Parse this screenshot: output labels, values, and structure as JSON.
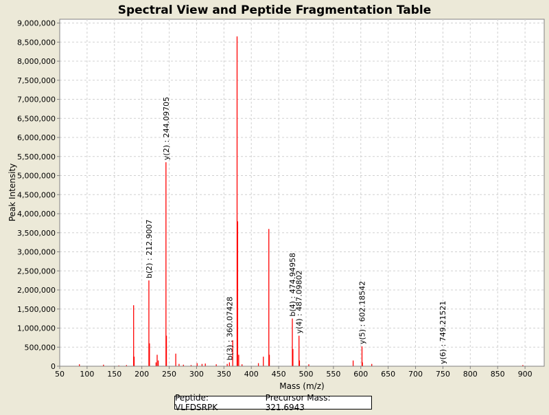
{
  "colors": {
    "background": "#ece9d8",
    "plot_background": "#ffffff",
    "peak": "#ff0000",
    "grid": "#d0d0d0",
    "axis": "#808080",
    "text": "#000000"
  },
  "chart_data": {
    "type": "bar",
    "title": "Spectral View and Peptide Fragmentation Table",
    "xlabel": "Mass (m/z)",
    "ylabel": "Peak Intensity",
    "xlim": [
      50,
      935
    ],
    "ylim": [
      0,
      9100000
    ],
    "xticks": [
      50,
      100,
      150,
      200,
      250,
      300,
      350,
      400,
      450,
      500,
      550,
      600,
      650,
      700,
      750,
      800,
      850,
      900
    ],
    "xtick_labels": [
      "50",
      "100",
      "150",
      "200",
      "250",
      "300",
      "350",
      "400",
      "450",
      "500",
      "550",
      "600",
      "650",
      "700",
      "750",
      "800",
      "850",
      "900"
    ],
    "yticks": [
      0,
      500000,
      1000000,
      1500000,
      2000000,
      2500000,
      3000000,
      3500000,
      4000000,
      4500000,
      5000000,
      5500000,
      6000000,
      6500000,
      7000000,
      7500000,
      8000000,
      8500000,
      9000000
    ],
    "ytick_labels": [
      "0",
      "500,000",
      "1,000,000",
      "1,500,000",
      "2,000,000",
      "2,500,000",
      "3,000,000",
      "3,500,000",
      "4,000,000",
      "4,500,000",
      "5,000,000",
      "5,500,000",
      "6,000,000",
      "6,500,000",
      "7,000,000",
      "7,500,000",
      "8,000,000",
      "8,500,000",
      "9,000,000"
    ],
    "grid": true,
    "peaks": [
      {
        "mz": 86,
        "intensity": 50000
      },
      {
        "mz": 130,
        "intensity": 40000
      },
      {
        "mz": 158,
        "intensity": 20000
      },
      {
        "mz": 172,
        "intensity": 30000
      },
      {
        "mz": 185,
        "intensity": 1600000
      },
      {
        "mz": 186,
        "intensity": 250000
      },
      {
        "mz": 212.9,
        "intensity": 2250000
      },
      {
        "mz": 214,
        "intensity": 600000
      },
      {
        "mz": 226,
        "intensity": 100000
      },
      {
        "mz": 228,
        "intensity": 300000
      },
      {
        "mz": 230,
        "intensity": 150000
      },
      {
        "mz": 244.1,
        "intensity": 5350000
      },
      {
        "mz": 245,
        "intensity": 800000
      },
      {
        "mz": 262,
        "intensity": 330000
      },
      {
        "mz": 268,
        "intensity": 60000
      },
      {
        "mz": 276,
        "intensity": 40000
      },
      {
        "mz": 290,
        "intensity": 30000
      },
      {
        "mz": 301,
        "intensity": 80000
      },
      {
        "mz": 310,
        "intensity": 60000
      },
      {
        "mz": 316,
        "intensity": 70000
      },
      {
        "mz": 336,
        "intensity": 50000
      },
      {
        "mz": 356,
        "intensity": 60000
      },
      {
        "mz": 360.07,
        "intensity": 100000
      },
      {
        "mz": 366,
        "intensity": 680000
      },
      {
        "mz": 374,
        "intensity": 8650000
      },
      {
        "mz": 375,
        "intensity": 3800000
      },
      {
        "mz": 377,
        "intensity": 300000
      },
      {
        "mz": 383,
        "intensity": 50000
      },
      {
        "mz": 413,
        "intensity": 80000
      },
      {
        "mz": 422,
        "intensity": 250000
      },
      {
        "mz": 432,
        "intensity": 3600000
      },
      {
        "mz": 433,
        "intensity": 300000
      },
      {
        "mz": 474.95,
        "intensity": 1250000
      },
      {
        "mz": 476,
        "intensity": 450000
      },
      {
        "mz": 487.1,
        "intensity": 800000
      },
      {
        "mz": 488,
        "intensity": 150000
      },
      {
        "mz": 505,
        "intensity": 50000
      },
      {
        "mz": 586,
        "intensity": 150000
      },
      {
        "mz": 602.19,
        "intensity": 520000
      },
      {
        "mz": 603,
        "intensity": 100000
      },
      {
        "mz": 620,
        "intensity": 60000
      },
      {
        "mz": 896,
        "intensity": 30000
      }
    ],
    "annotations": [
      {
        "mz": 212.9007,
        "intensity": 2250000,
        "label": "b(2) : 212.9007"
      },
      {
        "mz": 244.09705,
        "intensity": 5350000,
        "label": "y(2) : 244.09705"
      },
      {
        "mz": 360.07428,
        "intensity": 100000,
        "label": "b(3) : 360.07428"
      },
      {
        "mz": 474.94958,
        "intensity": 1250000,
        "label": "b(4) : 474.94958"
      },
      {
        "mz": 487.09802,
        "intensity": 800000,
        "label": "y(4) : 487.09802"
      },
      {
        "mz": 602.18542,
        "intensity": 520000,
        "label": "y(5) : 602.18542"
      },
      {
        "mz": 749.21521,
        "intensity": 0,
        "label": "y(6) : 749.21521"
      }
    ]
  },
  "footer": {
    "peptide": "Peptide: VLFDSRPK",
    "precursor": "Precursor Mass: 321.6943"
  }
}
